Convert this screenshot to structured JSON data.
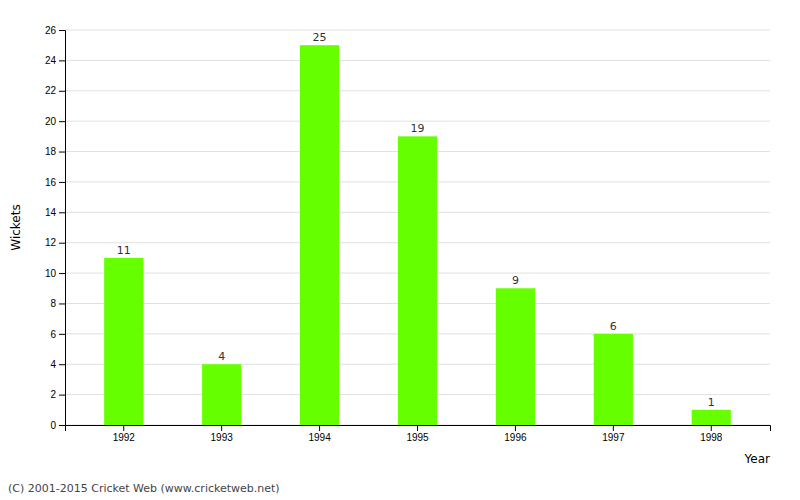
{
  "chart_data": {
    "type": "bar",
    "categories": [
      "1992",
      "1993",
      "1994",
      "1995",
      "1996",
      "1997",
      "1998"
    ],
    "values": [
      11,
      4,
      25,
      19,
      9,
      6,
      1
    ],
    "color": "#66ff00",
    "xlabel": "Year",
    "ylabel": "Wickets",
    "ylim": [
      0,
      26
    ],
    "yticks": [
      0,
      2,
      4,
      6,
      8,
      10,
      12,
      14,
      16,
      18,
      20,
      22,
      24,
      26
    ],
    "grid": true,
    "data_labels": true,
    "annotations": [
      "(C) 2001-2015 Cricket Web (www.cricketweb.net)"
    ]
  }
}
